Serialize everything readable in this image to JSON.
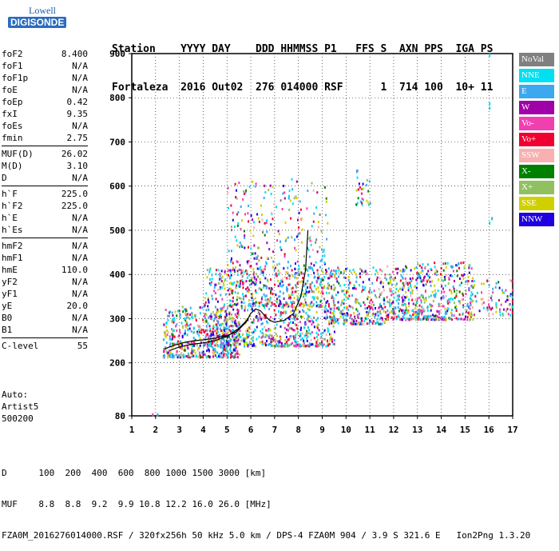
{
  "logo": {
    "line1": "Lowell",
    "line2": "DIGISONDE"
  },
  "header": {
    "row1": "Station    YYYY DAY    DDD HHMMSS P1   FFS S  AXN PPS  IGA PS",
    "row2": "Fortaleza  2016 Out02  276 014000 RSF      1  714 100  10+ 11"
  },
  "params": {
    "group1": [
      {
        "label": "foF2",
        "value": "8.400"
      },
      {
        "label": "foF1",
        "value": "N/A"
      },
      {
        "label": "foF1p",
        "value": "N/A"
      },
      {
        "label": "foE",
        "value": "N/A"
      },
      {
        "label": "foEp",
        "value": "0.42"
      },
      {
        "label": "fxI",
        "value": "9.35"
      },
      {
        "label": "foEs",
        "value": "N/A"
      },
      {
        "label": "fmin",
        "value": "2.75"
      }
    ],
    "group2": [
      {
        "label": "MUF(D)",
        "value": "26.02"
      },
      {
        "label": "M(D)",
        "value": "3.10"
      },
      {
        "label": "D",
        "value": "N/A"
      }
    ],
    "group3": [
      {
        "label": "h`F",
        "value": "225.0"
      },
      {
        "label": "h`F2",
        "value": "225.0"
      },
      {
        "label": "h`E",
        "value": "N/A"
      },
      {
        "label": "h`Es",
        "value": "N/A"
      }
    ],
    "group4": [
      {
        "label": "hmF2",
        "value": "N/A"
      },
      {
        "label": "hmF1",
        "value": "N/A"
      },
      {
        "label": "hmE",
        "value": "110.0"
      },
      {
        "label": "yF2",
        "value": "N/A"
      },
      {
        "label": "yF1",
        "value": "N/A"
      },
      {
        "label": "yE",
        "value": "20.0"
      },
      {
        "label": "B0",
        "value": "N/A"
      },
      {
        "label": "B1",
        "value": "N/A"
      }
    ],
    "group5": [
      {
        "label": "C-level",
        "value": "55"
      }
    ]
  },
  "autoscale": {
    "line1": "Auto:",
    "line2": "Artist5",
    "line3": "500200"
  },
  "legend": [
    {
      "label": "NoVal",
      "color": "#808080"
    },
    {
      "label": "NNE",
      "color": "#00e0f0"
    },
    {
      "label": "E",
      "color": "#3ca8f0"
    },
    {
      "label": "W",
      "color": "#a000a8"
    },
    {
      "label": "Vo-",
      "color": "#f040b0"
    },
    {
      "label": "Vo+",
      "color": "#f00030"
    },
    {
      "label": "SSW",
      "color": "#f8b0b0"
    },
    {
      "label": "X-",
      "color": "#008000"
    },
    {
      "label": "X+",
      "color": "#90c060"
    },
    {
      "label": "SSE",
      "color": "#d0d000"
    },
    {
      "label": "NNW",
      "color": "#2000e0"
    }
  ],
  "footer": {
    "line1": "D      100  200  400  600  800 1000 1500 3000 [km]",
    "line2": "MUF    8.8  8.8  9.2  9.9 10.8 12.2 16.0 26.0 [MHz]",
    "line3": "FZA0M_2016276014000.RSF / 320fx256h 50 kHz 5.0 km / DPS-4 FZA0M 904 / 3.9 S 321.6 E   Ion2Png 1.3.20"
  },
  "chart_data": {
    "type": "scatter",
    "title": "",
    "xlabel": "",
    "ylabel": "",
    "xlim": [
      1,
      17
    ],
    "ylim": [
      80,
      900
    ],
    "x_ticks": [
      "1",
      "2",
      "3",
      "4",
      "5",
      "6",
      "7",
      "8",
      "9",
      "10",
      "11",
      "12",
      "13",
      "14",
      "15",
      "16",
      "17"
    ],
    "y_ticks": [
      "80",
      "200",
      "300",
      "400",
      "500",
      "600",
      "700",
      "800",
      "900"
    ],
    "grid": true,
    "echo_regions": [
      {
        "x_range": [
          2.3,
          5.5
        ],
        "y_range": [
          215,
          330
        ],
        "density": 520
      },
      {
        "x_range": [
          4.0,
          9.5
        ],
        "y_range": [
          240,
          420
        ],
        "density": 900
      },
      {
        "x_range": [
          5.0,
          9.2
        ],
        "y_range": [
          330,
          620
        ],
        "density": 420
      },
      {
        "x_range": [
          9.3,
          11.6
        ],
        "y_range": [
          290,
          420
        ],
        "density": 300
      },
      {
        "x_range": [
          11.6,
          15.3
        ],
        "y_range": [
          300,
          430
        ],
        "density": 520
      },
      {
        "x_range": [
          15.0,
          17.0
        ],
        "y_range": [
          310,
          390
        ],
        "density": 90
      },
      {
        "x_range": [
          10.4,
          11.0
        ],
        "y_range": [
          560,
          640
        ],
        "density": 30
      }
    ],
    "isolated_echoes": [
      {
        "x": 1.85,
        "y": 86
      },
      {
        "x": 2.05,
        "y": 86
      },
      {
        "x": 16.0,
        "y": 900
      },
      {
        "x": 16.0,
        "y": 790
      },
      {
        "x": 16.0,
        "y": 780
      },
      {
        "x": 16.1,
        "y": 530
      },
      {
        "x": 16.0,
        "y": 520
      }
    ],
    "trace": {
      "name": "",
      "x": [
        2.4,
        2.8,
        3.2,
        3.6,
        4.0,
        4.5,
        5.0,
        5.4,
        5.8,
        6.0,
        6.2,
        6.4,
        6.6,
        6.8,
        7.0,
        7.4,
        7.8,
        8.1,
        8.3,
        8.4
      ],
      "y": [
        232,
        240,
        246,
        250,
        252,
        256,
        262,
        270,
        292,
        312,
        322,
        318,
        306,
        296,
        292,
        296,
        312,
        350,
        410,
        500
      ]
    },
    "trace2": {
      "name": "",
      "x": [
        2.6,
        3.0,
        3.5,
        4.0,
        4.5,
        5.0,
        5.5,
        5.9
      ],
      "y": [
        228,
        236,
        242,
        245,
        250,
        260,
        278,
        300
      ]
    }
  }
}
